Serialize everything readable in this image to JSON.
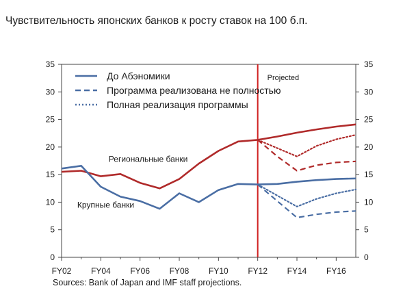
{
  "title": "Чувствительность японских банков к росту ставок на 100 б.п.",
  "source": "Sources: Bank of Japan and IMF staff projections.",
  "chart_data": {
    "type": "line",
    "ylim": [
      0,
      35
    ],
    "yticks": [
      0,
      5,
      10,
      15,
      20,
      25,
      30,
      35
    ],
    "x_tick_labels": [
      "FY02",
      "FY04",
      "FY06",
      "FY08",
      "FY10",
      "FY12",
      "FY14",
      "FY16"
    ],
    "x_tick_values": [
      2002,
      2004,
      2006,
      2008,
      2010,
      2012,
      2014,
      2016
    ],
    "xlim": [
      2002,
      2017
    ],
    "projection_year": 2012,
    "projection_label": "Projected",
    "grid": false,
    "legend_position": "top-left",
    "legend": [
      {
        "label": "До Абэномики",
        "style": "solid"
      },
      {
        "label": "Программа реализована не полностью",
        "style": "dashed"
      },
      {
        "label": "Полная реализация программы",
        "style": "dotted"
      }
    ],
    "group_labels": [
      {
        "text": "Региональные банки",
        "x": 2004.4,
        "y": 17.3
      },
      {
        "text": "Крупные банки",
        "x": 2002.8,
        "y": 9.0
      }
    ],
    "series": [
      {
        "group": "regional",
        "scenario": "before",
        "style": "solid",
        "color": "#b02a2a",
        "x": [
          2002,
          2003,
          2004,
          2005,
          2006,
          2007,
          2008,
          2009,
          2010,
          2011,
          2012,
          2013,
          2014,
          2015,
          2016,
          2017
        ],
        "y": [
          15.5,
          15.7,
          14.7,
          15.1,
          13.5,
          12.5,
          14.2,
          17.0,
          19.3,
          21.0,
          21.3,
          21.9,
          22.6,
          23.2,
          23.7,
          24.1
        ]
      },
      {
        "group": "regional",
        "scenario": "partial",
        "style": "dashed",
        "color": "#b02a2a",
        "x": [
          2012,
          2013,
          2014,
          2015,
          2016,
          2017
        ],
        "y": [
          21.3,
          18.3,
          15.7,
          16.7,
          17.2,
          17.4
        ]
      },
      {
        "group": "regional",
        "scenario": "full",
        "style": "dotted",
        "color": "#b02a2a",
        "x": [
          2012,
          2013,
          2014,
          2015,
          2016,
          2017
        ],
        "y": [
          21.3,
          19.8,
          18.3,
          20.2,
          21.4,
          22.2
        ]
      },
      {
        "group": "major",
        "scenario": "before",
        "style": "solid",
        "color": "#4a6ea4",
        "x": [
          2002,
          2003,
          2004,
          2005,
          2006,
          2007,
          2008,
          2009,
          2010,
          2011,
          2012,
          2013,
          2014,
          2015,
          2016,
          2017
        ],
        "y": [
          16.1,
          16.6,
          12.8,
          11.0,
          10.2,
          8.8,
          11.6,
          10.0,
          12.2,
          13.3,
          13.2,
          13.3,
          13.7,
          14.0,
          14.2,
          14.3
        ]
      },
      {
        "group": "major",
        "scenario": "partial",
        "style": "dashed",
        "color": "#4a6ea4",
        "x": [
          2012,
          2013,
          2014,
          2015,
          2016,
          2017
        ],
        "y": [
          13.2,
          10.2,
          7.2,
          7.8,
          8.2,
          8.4
        ]
      },
      {
        "group": "major",
        "scenario": "full",
        "style": "dotted",
        "color": "#4a6ea4",
        "x": [
          2012,
          2013,
          2014,
          2015,
          2016,
          2017
        ],
        "y": [
          13.2,
          11.2,
          9.2,
          10.6,
          11.6,
          12.3
        ]
      }
    ],
    "colors": {
      "regional": "#b02a2a",
      "major": "#4a6ea4",
      "projection_line": "#d02020",
      "axis": "#444444"
    }
  }
}
